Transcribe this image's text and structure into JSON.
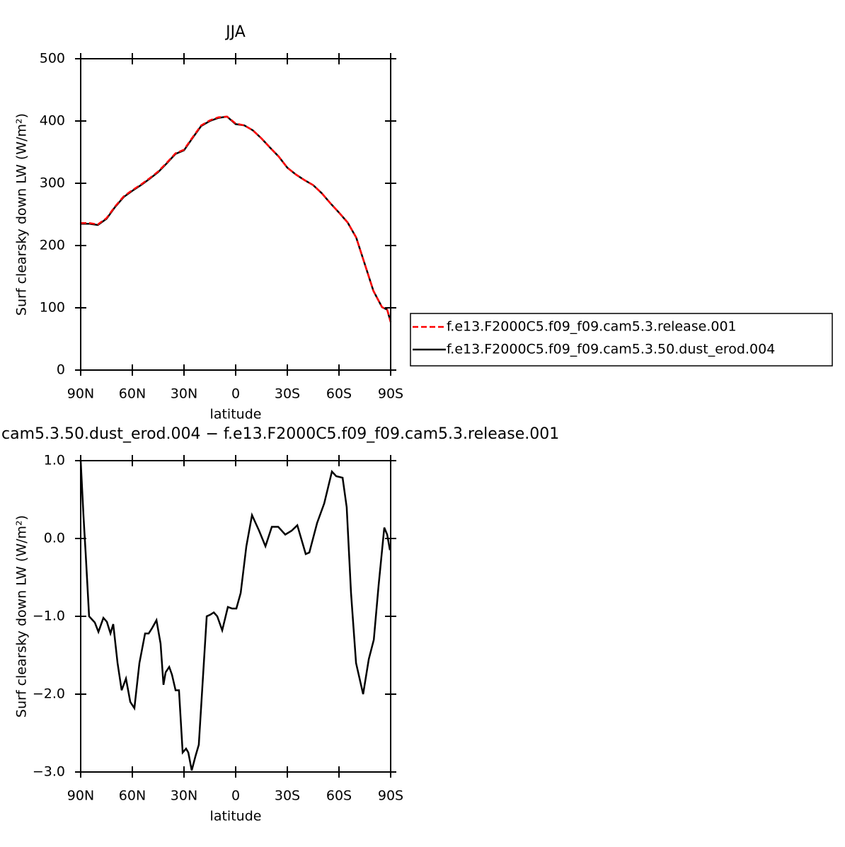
{
  "chart_data": [
    {
      "type": "line",
      "title": "JJA",
      "xlabel": "latitude",
      "ylabel": "Surf clearsky down LW (W/m²)",
      "xlim": [
        90,
        -90
      ],
      "xticks": [
        {
          "value": 90,
          "label": "90N"
        },
        {
          "value": 60,
          "label": "60N"
        },
        {
          "value": 30,
          "label": "30N"
        },
        0,
        {
          "value": -30,
          "label": "30S"
        },
        {
          "value": -60,
          "label": "60S"
        },
        {
          "value": -90,
          "label": "90S"
        }
      ],
      "ylim": [
        0,
        500
      ],
      "yticks": [
        0,
        100,
        200,
        300,
        400,
        500
      ],
      "legend": "right",
      "x": [
        90,
        85,
        80,
        75,
        70,
        65,
        60,
        55,
        50,
        45,
        40,
        35,
        30,
        25,
        20,
        15,
        10,
        5,
        0,
        -5,
        -10,
        -15,
        -20,
        -25,
        -30,
        -35,
        -40,
        -45,
        -50,
        -55,
        -60,
        -65,
        -70,
        -75,
        -80,
        -85,
        -88,
        -90
      ],
      "series": [
        {
          "name": "f.e13.F2000C5.f09_f09.cam5.3.release.001",
          "color": "#ff0000",
          "dash": true,
          "values": [
            236,
            236,
            234,
            244,
            263,
            279,
            289,
            298,
            308,
            319,
            333,
            348,
            354,
            374,
            393,
            401,
            406,
            407,
            396,
            393,
            385,
            372,
            357,
            343,
            325,
            314,
            305,
            297,
            284,
            268,
            253,
            237,
            213,
            170,
            127,
            101,
            97,
            77
          ]
        },
        {
          "name": "f.e13.F2000C5.f09_f09.cam5.3.50.dust_erod.004",
          "color": "#000000",
          "dash": false,
          "values": [
            235,
            235,
            233,
            243,
            262,
            278,
            288,
            297,
            307,
            318,
            332,
            347,
            353,
            373,
            392,
            400,
            405,
            407,
            395,
            393,
            385,
            372,
            357,
            343,
            325,
            314,
            305,
            297,
            284,
            268,
            253,
            237,
            213,
            170,
            127,
            101,
            97,
            77
          ]
        }
      ]
    },
    {
      "type": "line",
      "title": "cam5.3.50.dust_erod.004 − f.e13.F2000C5.f09_f09.cam5.3.release.001",
      "xlabel": "latitude",
      "ylabel": "Surf clearsky down LW (W/m²)",
      "xlim": [
        90,
        -90
      ],
      "xticks": [
        {
          "value": 90,
          "label": "90N"
        },
        {
          "value": 60,
          "label": "60N"
        },
        {
          "value": 30,
          "label": "30N"
        },
        0,
        {
          "value": -30,
          "label": "30S"
        },
        {
          "value": -60,
          "label": "60S"
        },
        {
          "value": -90,
          "label": "90S"
        }
      ],
      "ylim": [
        -3,
        1
      ],
      "yticks": [
        {
          "value": -3,
          "label": "−3.0"
        },
        {
          "value": -2,
          "label": "−2.0"
        },
        {
          "value": -1,
          "label": "−1.0"
        },
        {
          "value": 0,
          "label": "0.0"
        },
        {
          "value": 1,
          "label": "1.0"
        }
      ],
      "color": "#000000",
      "x": [
        90,
        88.4,
        87.1,
        85.1,
        83.0,
        81.8,
        79.7,
        76.8,
        74.8,
        72.7,
        71.1,
        68.6,
        66.2,
        63.7,
        61.2,
        58.8,
        55.9,
        52.6,
        50.5,
        48.5,
        46.0,
        43.6,
        41.9,
        40.7,
        38.6,
        37.0,
        34.9,
        32.9,
        30.8,
        28.8,
        27.5,
        25.5,
        23.4,
        21.4,
        16.8,
        14.8,
        12.7,
        10.7,
        7.8,
        4.5,
        2.0,
        -0.4,
        -2.9,
        -6.2,
        -9.5,
        -13.6,
        -17.3,
        -21.0,
        -24.7,
        -28.8,
        -32.5,
        -35.8,
        -40.7,
        -42.8,
        -47.3,
        -51.4,
        -55.9,
        -58.4,
        -62.1,
        -64.5,
        -67.0,
        -69.9,
        -74.0,
        -77.3,
        -80.2,
        -83.0,
        -86.3,
        -88.0,
        -89.6
      ],
      "values": [
        1.0,
        0.3,
        -0.2,
        -1.0,
        -1.05,
        -1.08,
        -1.2,
        -1.02,
        -1.07,
        -1.22,
        -1.1,
        -1.6,
        -1.95,
        -1.8,
        -2.1,
        -2.18,
        -1.6,
        -1.22,
        -1.22,
        -1.15,
        -1.05,
        -1.35,
        -1.88,
        -1.72,
        -1.65,
        -1.75,
        -1.95,
        -1.95,
        -2.75,
        -2.7,
        -2.75,
        -2.98,
        -2.8,
        -2.65,
        -1.0,
        -0.98,
        -0.95,
        -1.0,
        -1.18,
        -0.88,
        -0.9,
        -0.9,
        -0.7,
        -0.1,
        0.3,
        0.1,
        -0.1,
        0.15,
        0.15,
        0.05,
        0.1,
        0.17,
        -0.2,
        -0.18,
        0.2,
        0.45,
        0.86,
        0.8,
        0.78,
        0.4,
        -0.7,
        -1.6,
        -2.0,
        -1.55,
        -1.3,
        -0.6,
        0.14,
        0.05,
        -0.15
      ]
    }
  ]
}
